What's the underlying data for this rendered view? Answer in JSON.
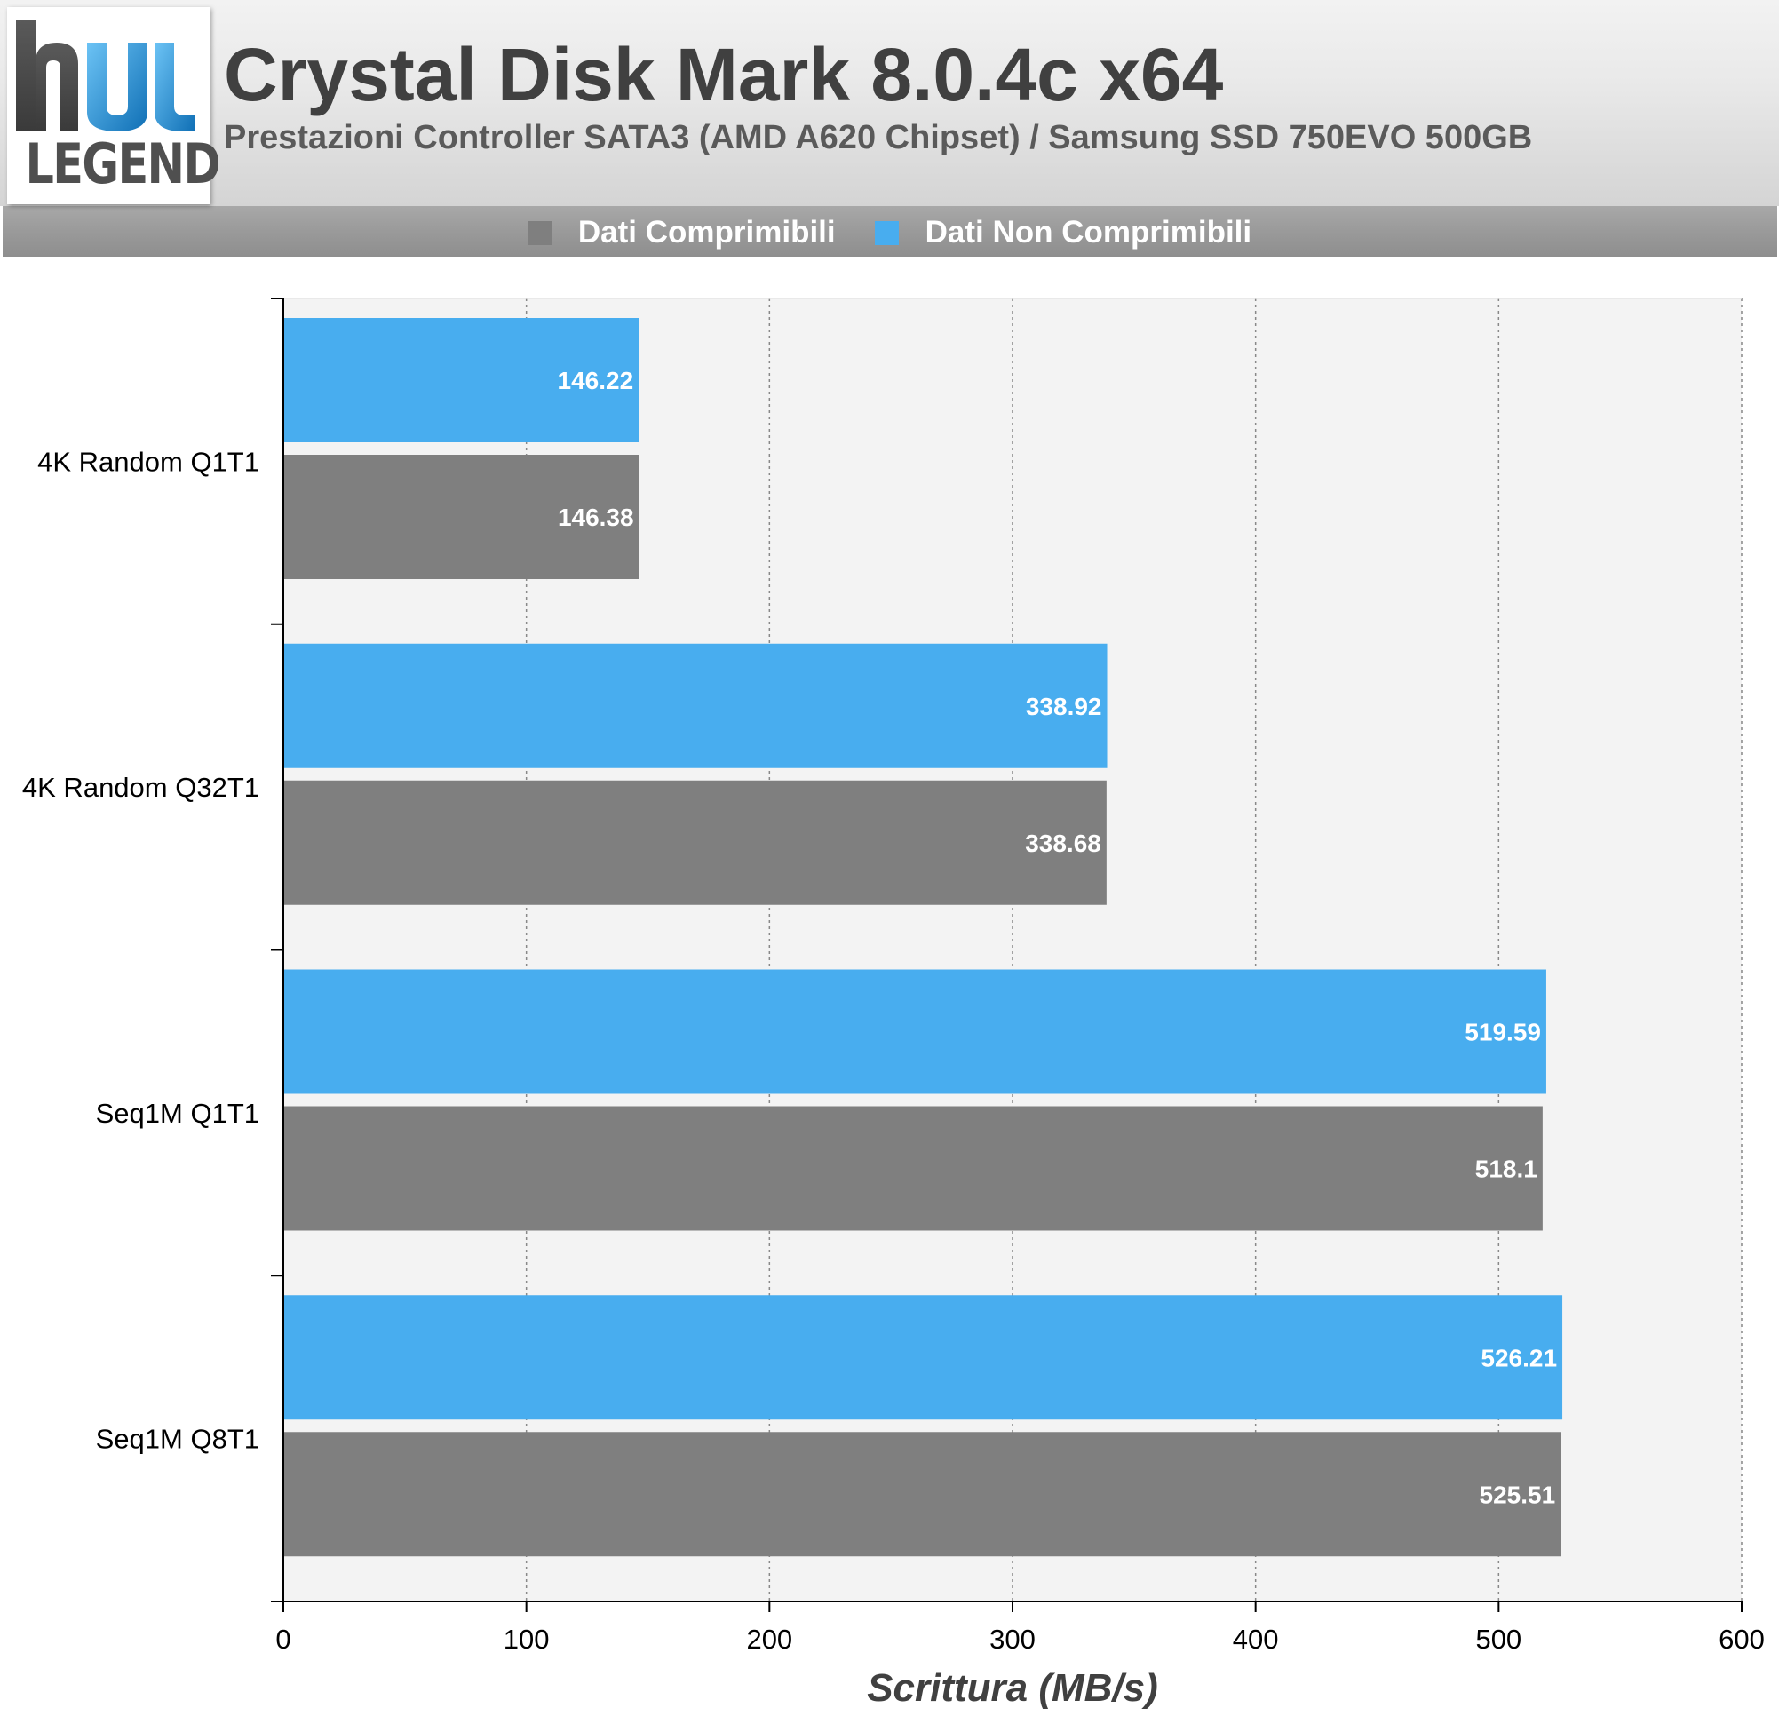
{
  "header": {
    "title": "Crystal Disk Mark 8.0.4c x64",
    "subtitle": "Prestazioni Controller SATA3 (AMD A620 Chipset) / Samsung SSD 750EVO 500GB",
    "logo_text": "LEGEND"
  },
  "colors": {
    "compressible": "#7f7f7f",
    "incompressible": "#48adef",
    "plot_background": "#f3f3f3"
  },
  "chart_data": {
    "type": "bar",
    "orientation": "horizontal",
    "categories": [
      "4K Random Q1T1",
      "4K Random Q32T1",
      "Seq1M Q1T1",
      "Seq1M Q8T1"
    ],
    "series": [
      {
        "name": "Dati Non Comprimibili",
        "values": [
          146.22,
          338.92,
          519.59,
          526.21
        ],
        "labels": [
          "146.22",
          "338.92",
          "519.59",
          "526.21"
        ]
      },
      {
        "name": "Dati Comprimibili",
        "values": [
          146.38,
          338.68,
          518.1,
          525.51
        ],
        "labels": [
          "146.38",
          "338.68",
          "518.1",
          "525.51"
        ]
      }
    ],
    "legend_order": [
      "Dati Comprimibili",
      "Dati Non Comprimibili"
    ],
    "xlabel": "Scrittura (MB/s)",
    "xlim": [
      0,
      600
    ],
    "xticks": [
      "0",
      "100",
      "200",
      "300",
      "400",
      "500",
      "600"
    ],
    "grid": true,
    "legend_position": "top"
  }
}
